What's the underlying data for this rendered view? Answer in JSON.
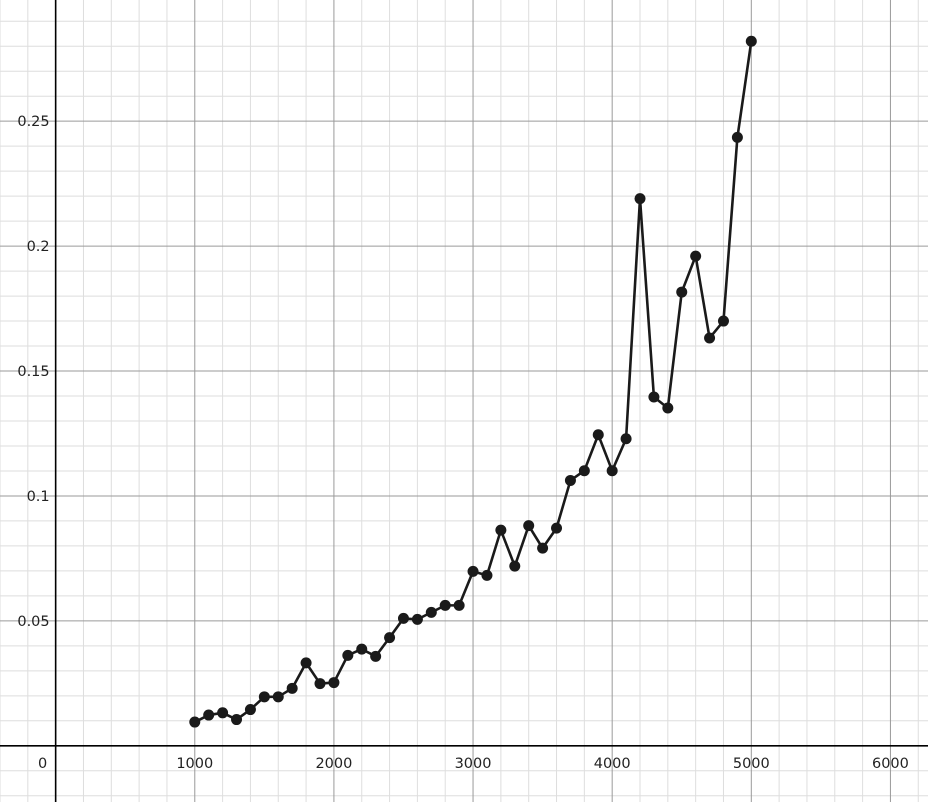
{
  "chart_data": {
    "type": "line",
    "title": "",
    "xlabel": "",
    "ylabel": "",
    "xlim": [
      -400,
      6270
    ],
    "ylim": [
      -0.0225,
      0.2985
    ],
    "grid": true,
    "x_ticks": [
      0,
      1000,
      2000,
      3000,
      4000,
      5000,
      6000
    ],
    "x_tick_labels": [
      "0",
      "1000",
      "2000",
      "3000",
      "4000",
      "5000",
      "6000"
    ],
    "y_ticks": [
      0.05,
      0.1,
      0.15,
      0.2,
      0.25
    ],
    "y_tick_labels": [
      "0.05",
      "0.1",
      "0.15",
      "0.2",
      "0.25"
    ],
    "colors": {
      "series": "#1a1a1a",
      "major_grid": "#9a9a9a",
      "minor_grid": "#dedede",
      "axis": "#000000"
    },
    "series": [
      {
        "x": [
          1000,
          1100,
          1200,
          1300,
          1400,
          1500,
          1600,
          1700,
          1800,
          1900,
          2000,
          2100,
          2200,
          2300,
          2400,
          2500,
          2600,
          2700,
          2800,
          2900,
          3000,
          3100,
          3200,
          3300,
          3400,
          3500,
          3600,
          3700,
          3800,
          3900,
          4000,
          4100,
          4200,
          4300,
          4400,
          4500,
          4600,
          4700,
          4800,
          4900,
          5000
        ],
        "y": [
          0.0095,
          0.0123,
          0.0132,
          0.0105,
          0.0145,
          0.0196,
          0.0196,
          0.023,
          0.0332,
          0.0249,
          0.0253,
          0.0362,
          0.0387,
          0.0358,
          0.0433,
          0.051,
          0.0506,
          0.0534,
          0.0562,
          0.0562,
          0.0698,
          0.0682,
          0.0863,
          0.0719,
          0.0881,
          0.0791,
          0.0871,
          0.1062,
          0.1101,
          0.1245,
          0.1101,
          0.1229,
          0.219,
          0.1396,
          0.1352,
          0.1816,
          0.196,
          0.1632,
          0.17,
          0.2435,
          0.282
        ]
      }
    ]
  }
}
